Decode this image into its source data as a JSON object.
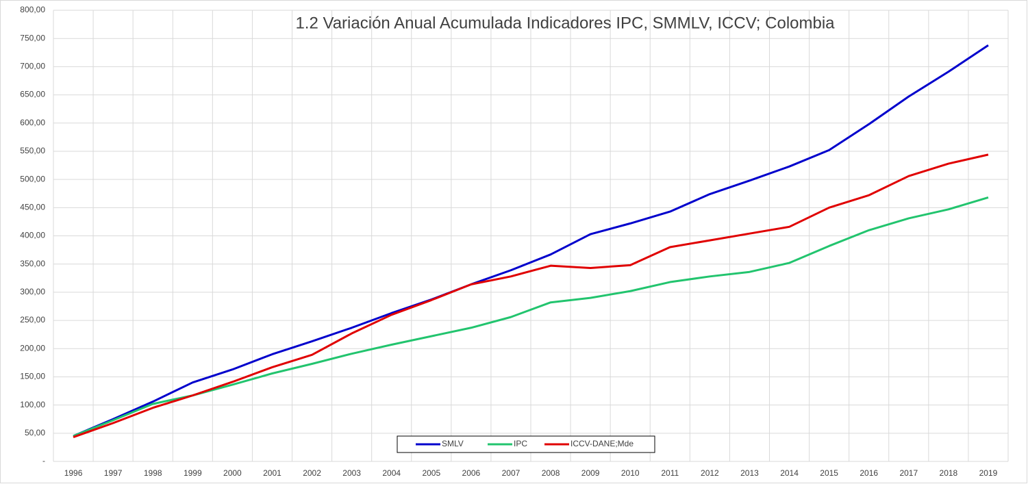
{
  "chart_data": {
    "type": "line",
    "title": "1.2 Variación Anual Acumulada Indicadores IPC, SMMLV, ICCV; Colombia",
    "categories": [
      "1996",
      "1997",
      "1998",
      "1999",
      "2000",
      "2001",
      "2002",
      "2003",
      "2004",
      "2005",
      "2006",
      "2007",
      "2008",
      "2009",
      "2010",
      "2011",
      "2012",
      "2013",
      "2014",
      "2015",
      "2016",
      "2017",
      "2018",
      "2019"
    ],
    "series": [
      {
        "name": "SMLV",
        "color": "#0000cc",
        "values": [
          45,
          75,
          106,
          140,
          163,
          190,
          213,
          237,
          263,
          287,
          314,
          339,
          367,
          403,
          422,
          443,
          474,
          498,
          523,
          552,
          598,
          647,
          691,
          738
        ]
      },
      {
        "name": "IPC",
        "color": "#22c46e",
        "values": [
          45,
          73,
          102,
          117,
          136,
          156,
          173,
          191,
          207,
          222,
          237,
          256,
          282,
          290,
          302,
          318,
          328,
          336,
          352,
          382,
          410,
          431,
          447,
          468
        ]
      },
      {
        "name": "ICCV-DANE;Mde",
        "color": "#e00000",
        "values": [
          43,
          68,
          95,
          117,
          141,
          167,
          189,
          227,
          260,
          286,
          314,
          328,
          347,
          343,
          348,
          380,
          392,
          404,
          416,
          450,
          472,
          506,
          528,
          544
        ]
      }
    ],
    "ylim": [
      0,
      800
    ],
    "yticks": [
      {
        "value": 0,
        "label": "-"
      },
      {
        "value": 50,
        "label": "50,00"
      },
      {
        "value": 100,
        "label": "100,00"
      },
      {
        "value": 150,
        "label": "150,00"
      },
      {
        "value": 200,
        "label": "200,00"
      },
      {
        "value": 250,
        "label": "250,00"
      },
      {
        "value": 300,
        "label": "300,00"
      },
      {
        "value": 350,
        "label": "350,00"
      },
      {
        "value": 400,
        "label": "400,00"
      },
      {
        "value": 450,
        "label": "450,00"
      },
      {
        "value": 500,
        "label": "500,00"
      },
      {
        "value": 550,
        "label": "550,00"
      },
      {
        "value": 600,
        "label": "600,00"
      },
      {
        "value": 650,
        "label": "650,00"
      },
      {
        "value": 700,
        "label": "700,00"
      },
      {
        "value": 750,
        "label": "750,00"
      },
      {
        "value": 800,
        "label": "800,00"
      }
    ],
    "grid": true,
    "legend": "bottom"
  }
}
